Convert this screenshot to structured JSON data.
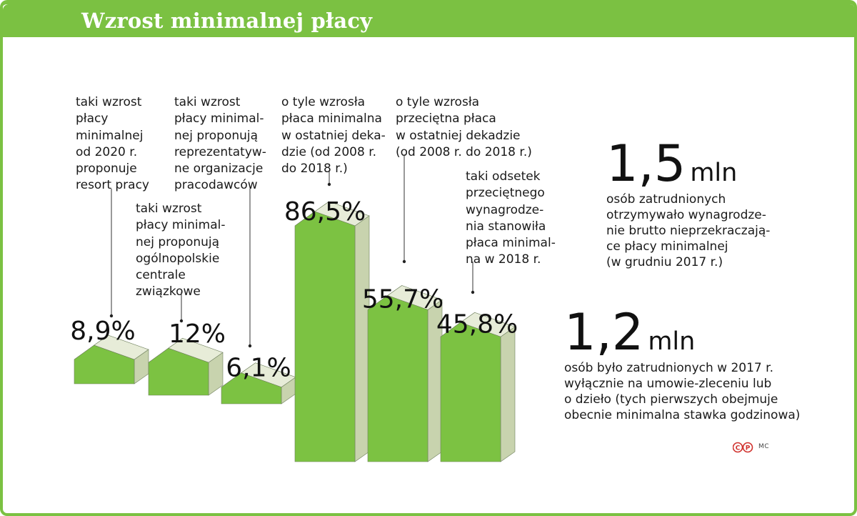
{
  "header": {
    "title": "Wzrost minimalnej płacy"
  },
  "chart_data": {
    "type": "bar",
    "title": "Wzrost minimalnej płacy",
    "categories": [
      "taki wzrost płacy minimalnej od 2020 r. proponuje resort pracy",
      "taki wzrost płacy minimalnej proponują ogólnopolskie centrale związkowe",
      "taki wzrost płacy minimalnej proponują reprezentatywne organizacje pracodawców",
      "o tyle wzrosła płaca minimalna w ostatniej dekadzie (od 2008 r. do 2018 r.)",
      "o tyle wzrosła przeciętna płaca w ostatniej dekadzie (od 2008 r. do 2018 r.)",
      "taki odsetek przeciętnego wynagrodzenia stanowiła płaca minimalna w 2018 r."
    ],
    "values": [
      8.9,
      12,
      6.1,
      86.5,
      55.7,
      45.8
    ],
    "unit": "%",
    "value_labels": [
      "8,9%",
      "12%",
      "6,1%",
      "86,5%",
      "55,7%",
      "45,8%"
    ],
    "notes": [
      "taki wzrost\npłacy\nminimalnej\nod 2020 r.\nproponuje\nresort pracy",
      "taki wzrost\npłacy minimal-\nnej proponują\nogólnopolskie\ncentrale\nzwiązkowe",
      "taki wzrost\npłacy minimal-\nnej proponują\nreprezentatyw-\nne organizacje\npracodawców",
      "o tyle wzrosła\npłaca minimalna\nw ostatniej deka-\ndzie (od 2008 r.\ndo 2018 r.)",
      "o tyle wzrosła\nprzeciętna płaca\nw ostatniej dekadzie\n(od 2008 r. do 2018 r.)",
      "taki odsetek\nprzeciętnego\nwynagrodze-\nnia stanowiła\npłaca minimal-\nna w 2018 r."
    ],
    "xlabel": "",
    "ylabel": "",
    "ylim": [
      0,
      100
    ],
    "colors": {
      "front": "#7cc242",
      "side": "#c8d3ae",
      "top": "#e7ecd8",
      "edge": "#6e7f5c"
    }
  },
  "stats": [
    {
      "value": "1,5",
      "unit": "mln",
      "description": "osób zatrudnionych\notrzymywało wynagrodze-\nnie brutto nieprzekraczają-\nce płacy minimalnej\n(w grudniu 2017 r.)"
    },
    {
      "value": "1,2",
      "unit": "mln",
      "description": "osób było zatrudnionych w 2017 r.\nwyłącznie na umowie-zleceniu lub\no dzieło (tych pierwszych obejmuje\nobecnie minimalna stawka godzinowa)"
    }
  ],
  "credit": {
    "logo": "cp-logo",
    "initials": "MC",
    "color": "#d0312d"
  },
  "colors": {
    "accent": "#7bc142",
    "title_text": "#ffffff"
  }
}
